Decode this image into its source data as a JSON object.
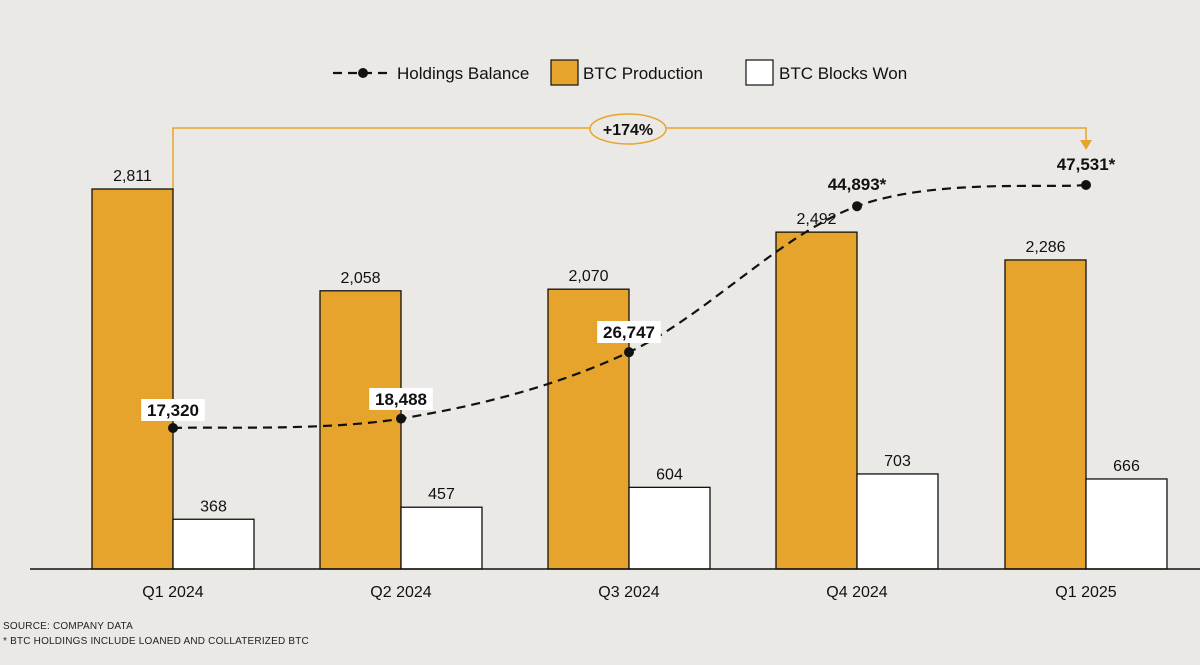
{
  "colors": {
    "background": "#ebe9e5",
    "production": "#e7a42c",
    "blocks_won": "#ffffff",
    "holdings_line": "#111111",
    "annotation": "#e7a42c",
    "label_box": "#ffffff"
  },
  "chart_data": {
    "type": "bar",
    "title": "",
    "xlabel": "",
    "ylabel": "",
    "categories": [
      "Q1 2024",
      "Q2 2024",
      "Q3 2024",
      "Q4 2024",
      "Q1 2025"
    ],
    "series": [
      {
        "name": "BTC Production",
        "values": [
          2811,
          2058,
          2070,
          2492,
          2286
        ],
        "labels": [
          "2,811",
          "2,058",
          "2,070",
          "2,492",
          "2,286"
        ]
      },
      {
        "name": "BTC Blocks Won",
        "values": [
          368,
          457,
          604,
          703,
          666
        ],
        "labels": [
          "368",
          "457",
          "604",
          "703",
          "666"
        ]
      }
    ],
    "line_series": {
      "name": "Holdings Balance",
      "values": [
        17320,
        18488,
        26747,
        44893,
        47531
      ],
      "labels": [
        "17,320",
        "18,488",
        "26,747",
        "44,893*",
        "47,531*"
      ]
    },
    "legend": [
      "Holdings Balance",
      "BTC Production",
      "BTC Blocks Won"
    ],
    "legend_position": "top-center",
    "growth_annotation": "+174%",
    "ylim_bars": [
      0,
      2811
    ],
    "ylim_line": [
      17320,
      47531
    ]
  },
  "footnotes": {
    "source": "SOURCE: COMPANY DATA",
    "note": "* BTC HOLDINGS INCLUDE LOANED AND COLLATERIZED BTC"
  }
}
